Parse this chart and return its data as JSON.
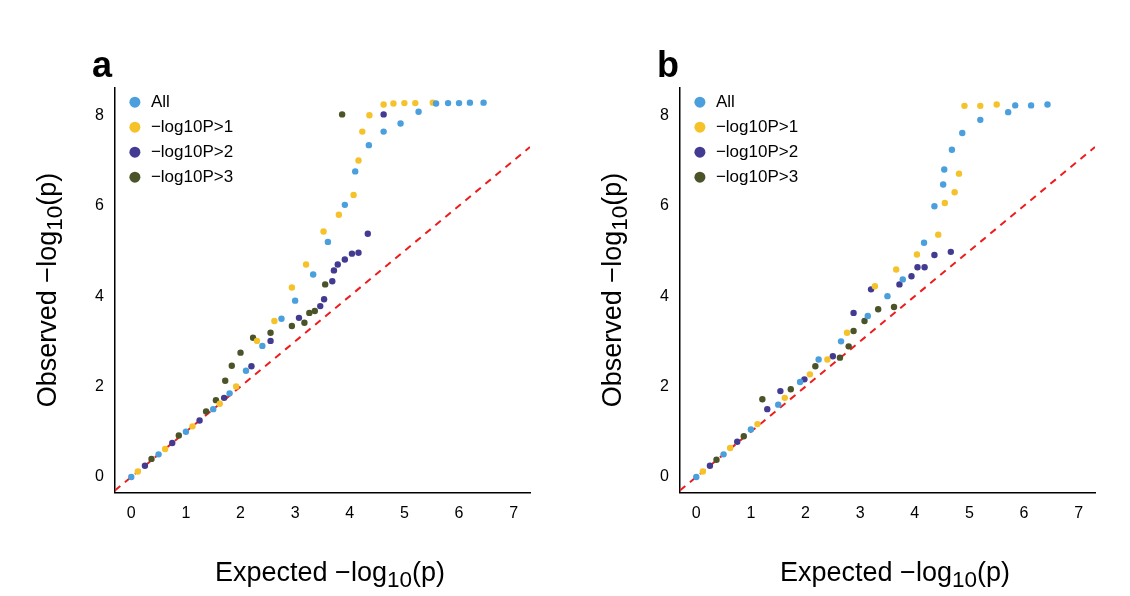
{
  "chart_data": [
    {
      "type": "scatter",
      "title": "a",
      "xlabel": "Expected −log$_{10}$(p)",
      "ylabel": "Observed −log$_{10}$(p)",
      "xlim": [
        -0.3,
        7.3
      ],
      "ylim": [
        -0.35,
        8.6
      ],
      "xticks": [
        0,
        1,
        2,
        3,
        4,
        5,
        6,
        7
      ],
      "yticks": [
        0,
        2,
        4,
        6,
        8
      ],
      "grid": false,
      "legend": "top left",
      "marker": "circle",
      "series": [
        {
          "name": "All",
          "color": "#4a9fdc",
          "x": [
            0,
            0.5,
            1,
            1.5,
            1.8,
            2.1,
            2.4,
            2.75,
            3.0,
            3.33,
            3.6,
            3.91,
            4.1,
            4.35,
            4.62,
            4.93,
            5.26,
            5.58,
            5.8,
            6.0,
            6.2,
            6.45
          ],
          "values": [
            0,
            0.5,
            1,
            1.5,
            1.85,
            2.35,
            2.9,
            3.5,
            3.9,
            4.48,
            5.2,
            6.02,
            6.76,
            7.34,
            7.64,
            7.82,
            8.08,
            8.26,
            8.27,
            8.27,
            8.28,
            8.28
          ]
        },
        {
          "name": "−log10P>1",
          "color": "#f5c22a",
          "x": [
            0.12,
            0.62,
            1.12,
            1.62,
            1.92,
            2.3,
            2.62,
            2.94,
            3.2,
            3.52,
            3.8,
            4.07,
            4.16,
            4.23,
            4.36,
            4.62,
            4.8,
            5.0,
            5.2,
            5.52
          ],
          "values": [
            0.12,
            0.62,
            1.12,
            1.62,
            2.0,
            3.01,
            3.45,
            4.19,
            4.7,
            5.43,
            5.8,
            6.24,
            7.0,
            7.64,
            8.0,
            8.24,
            8.26,
            8.27,
            8.27,
            8.28
          ]
        },
        {
          "name": "−log10P>2",
          "color": "#433a91",
          "x": [
            0.25,
            0.75,
            1.25,
            1.7,
            2.2,
            2.55,
            3.07,
            3.46,
            3.53,
            3.68,
            3.71,
            3.78,
            3.91,
            4.04,
            4.16,
            4.33,
            4.62
          ],
          "values": [
            0.25,
            0.75,
            1.25,
            1.75,
            2.45,
            3.01,
            3.52,
            3.78,
            3.93,
            4.33,
            4.57,
            4.7,
            4.81,
            4.94,
            4.96,
            5.38,
            8.02
          ]
        },
        {
          "name": "−log10P>3",
          "color": "#4a5428",
          "x": [
            0.37,
            0.87,
            1.37,
            1.55,
            1.72,
            1.84,
            2.0,
            2.23,
            2.55,
            2.94,
            3.17,
            3.26,
            3.36,
            3.55,
            3.86
          ],
          "values": [
            0.4,
            0.92,
            1.45,
            1.7,
            2.13,
            2.46,
            2.75,
            3.08,
            3.19,
            3.34,
            3.41,
            3.63,
            3.67,
            4.26,
            8.02
          ]
        },
        {
          "type": "line",
          "color": "#ee1c1c",
          "line_style": "dashed",
          "marker": "none",
          "x": [
            -0.3,
            7.3
          ],
          "values": [
            -0.3,
            7.3
          ]
        }
      ]
    },
    {
      "type": "scatter",
      "title": "b",
      "xlabel": "Expected −log$_{10}$(p)",
      "ylabel": "Observed −log$_{10}$(p)",
      "xlim": [
        -0.3,
        7.3
      ],
      "ylim": [
        -0.35,
        8.6
      ],
      "xticks": [
        0,
        1,
        2,
        3,
        4,
        5,
        6,
        7
      ],
      "yticks": [
        0,
        2,
        4,
        6,
        8
      ],
      "grid": false,
      "legend": "top left",
      "marker": "circle",
      "series": [
        {
          "name": "All",
          "color": "#4a9fdc",
          "x": [
            0,
            0.5,
            1,
            1.5,
            1.9,
            2.24,
            2.65,
            3.14,
            3.5,
            3.78,
            4.17,
            4.36,
            4.52,
            4.54,
            4.68,
            4.87,
            5.2,
            5.71,
            5.84,
            6.13,
            6.43
          ],
          "values": [
            0,
            0.5,
            1.05,
            1.6,
            2.1,
            2.6,
            3.0,
            3.56,
            4.0,
            4.37,
            5.18,
            5.99,
            6.47,
            6.8,
            7.24,
            7.61,
            7.9,
            8.07,
            8.22,
            8.22,
            8.24
          ]
        },
        {
          "name": "−log10P>1",
          "color": "#f5c22a",
          "x": [
            0.12,
            0.62,
            1.12,
            1.62,
            2.08,
            2.4,
            2.76,
            3.27,
            3.66,
            4.04,
            4.43,
            4.55,
            4.73,
            4.81,
            4.91,
            5.2,
            5.5
          ],
          "values": [
            0.12,
            0.64,
            1.17,
            1.75,
            2.27,
            2.6,
            3.19,
            4.22,
            4.59,
            4.92,
            5.36,
            6.06,
            6.3,
            6.71,
            8.21,
            8.21,
            8.24
          ]
        },
        {
          "name": "−log10P>2",
          "color": "#433a91",
          "x": [
            0.25,
            0.75,
            1.3,
            1.54,
            1.98,
            2.5,
            2.88,
            3.2,
            3.72,
            3.94,
            4.05,
            4.18,
            4.36,
            4.66
          ],
          "values": [
            0.25,
            0.78,
            1.5,
            1.9,
            2.16,
            2.67,
            3.63,
            4.15,
            4.26,
            4.44,
            4.64,
            4.64,
            4.91,
            4.98
          ]
        },
        {
          "name": "−log10P>3",
          "color": "#4a5428",
          "x": [
            0.37,
            0.87,
            1.21,
            1.73,
            2.18,
            2.63,
            2.79,
            2.88,
            3.08,
            3.33,
            3.62
          ],
          "values": [
            0.38,
            0.9,
            1.72,
            1.94,
            2.45,
            2.64,
            2.89,
            3.23,
            3.45,
            3.71,
            3.76
          ]
        },
        {
          "type": "line",
          "color": "#ee1c1c",
          "line_style": "dashed",
          "marker": "none",
          "x": [
            -0.3,
            7.3
          ],
          "values": [
            -0.3,
            7.3
          ]
        }
      ]
    }
  ]
}
